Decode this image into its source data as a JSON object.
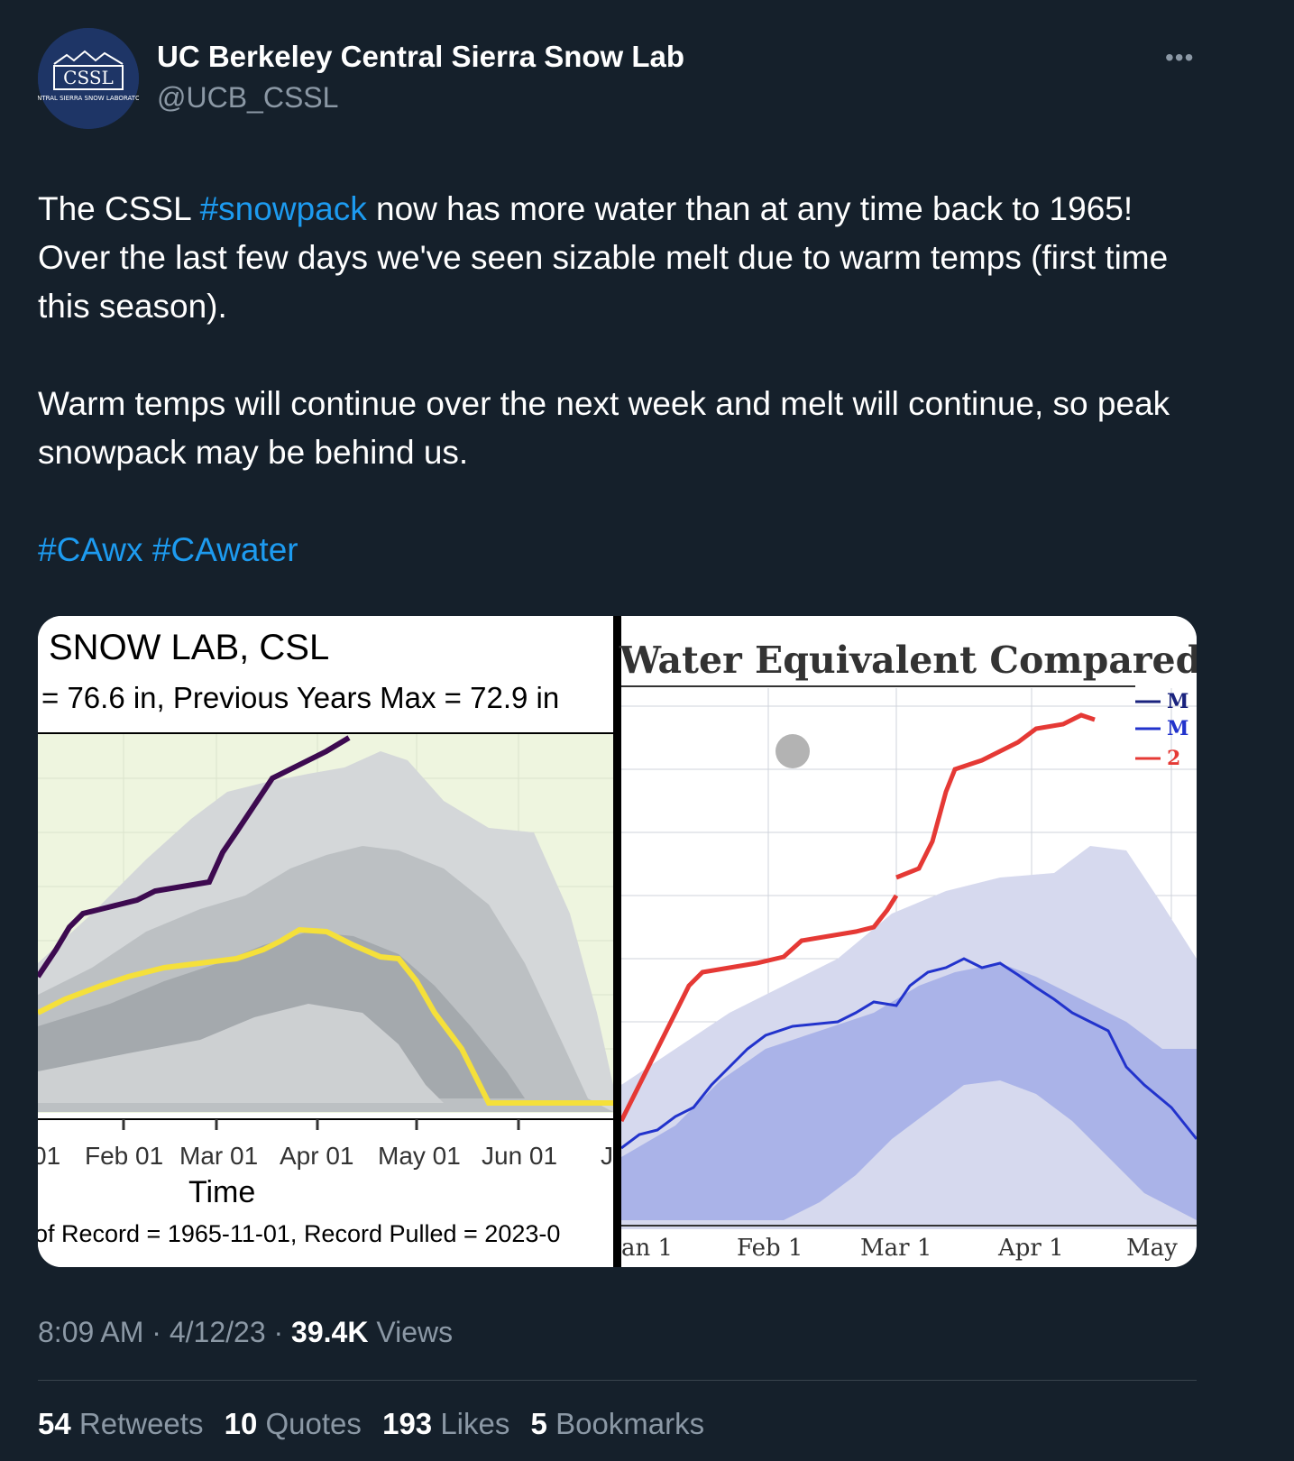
{
  "account": {
    "name": "UC Berkeley Central Sierra Snow Lab",
    "handle": "@UCB_CSSL",
    "avatar_text": "CSSL",
    "avatar_subtext": "CENTRAL SIERRA SNOW LABORATORY",
    "more_icon": "more-horizontal-icon"
  },
  "tweet": {
    "p1_a": "The CSSL ",
    "p1_tag": "#snowpack",
    "p1_b": " now has more water than at any time back to 1965! Over the last few days we've seen sizable melt due to warm temps (first time this season).",
    "p2": "Warm temps will continue over the next week and melt will continue, so peak snowpack may be behind us.",
    "tag1": "#CAwx",
    "tag2": "#CAwater"
  },
  "left_image": {
    "title": "SNOW LAB, CSL",
    "subtitle": "= 76.6 in, Previous Years Max = 72.9 in",
    "x_ticks": [
      "01",
      "Feb 01",
      "Mar 01",
      "Apr 01",
      "May 01",
      "Jun 01",
      "J"
    ],
    "xlabel": "Time",
    "footer": "of Record = 1965-11-01, Record Pulled = 2023-0"
  },
  "right_image": {
    "title": "Water Equivalent Compared to",
    "x_ticks": [
      "an 1",
      "Feb 1",
      "Mar 1",
      "Apr 1",
      "May"
    ],
    "legend": [
      {
        "label": "M",
        "color": "#1a237e"
      },
      {
        "label": "M",
        "color": "#2233cc"
      },
      {
        "label": "2",
        "color": "#e53935"
      }
    ]
  },
  "meta": {
    "time": "8:09 AM",
    "date": "4/12/23",
    "views_count": "39.4K",
    "views_label": "Views"
  },
  "stats": {
    "retweets_count": "54",
    "retweets_label": "Retweets",
    "quotes_count": "10",
    "quotes_label": "Quotes",
    "likes_count": "193",
    "likes_label": "Likes",
    "bookmarks_count": "5",
    "bookmarks_label": "Bookmarks"
  },
  "colors": {
    "background": "#15202b",
    "link": "#1d9bf0",
    "muted": "#8b98a5",
    "swe_2023_left": "#3d0a50",
    "median_left": "#f5e03a",
    "swe_2023_right": "#e53935",
    "median_right": "#2233cc"
  }
}
